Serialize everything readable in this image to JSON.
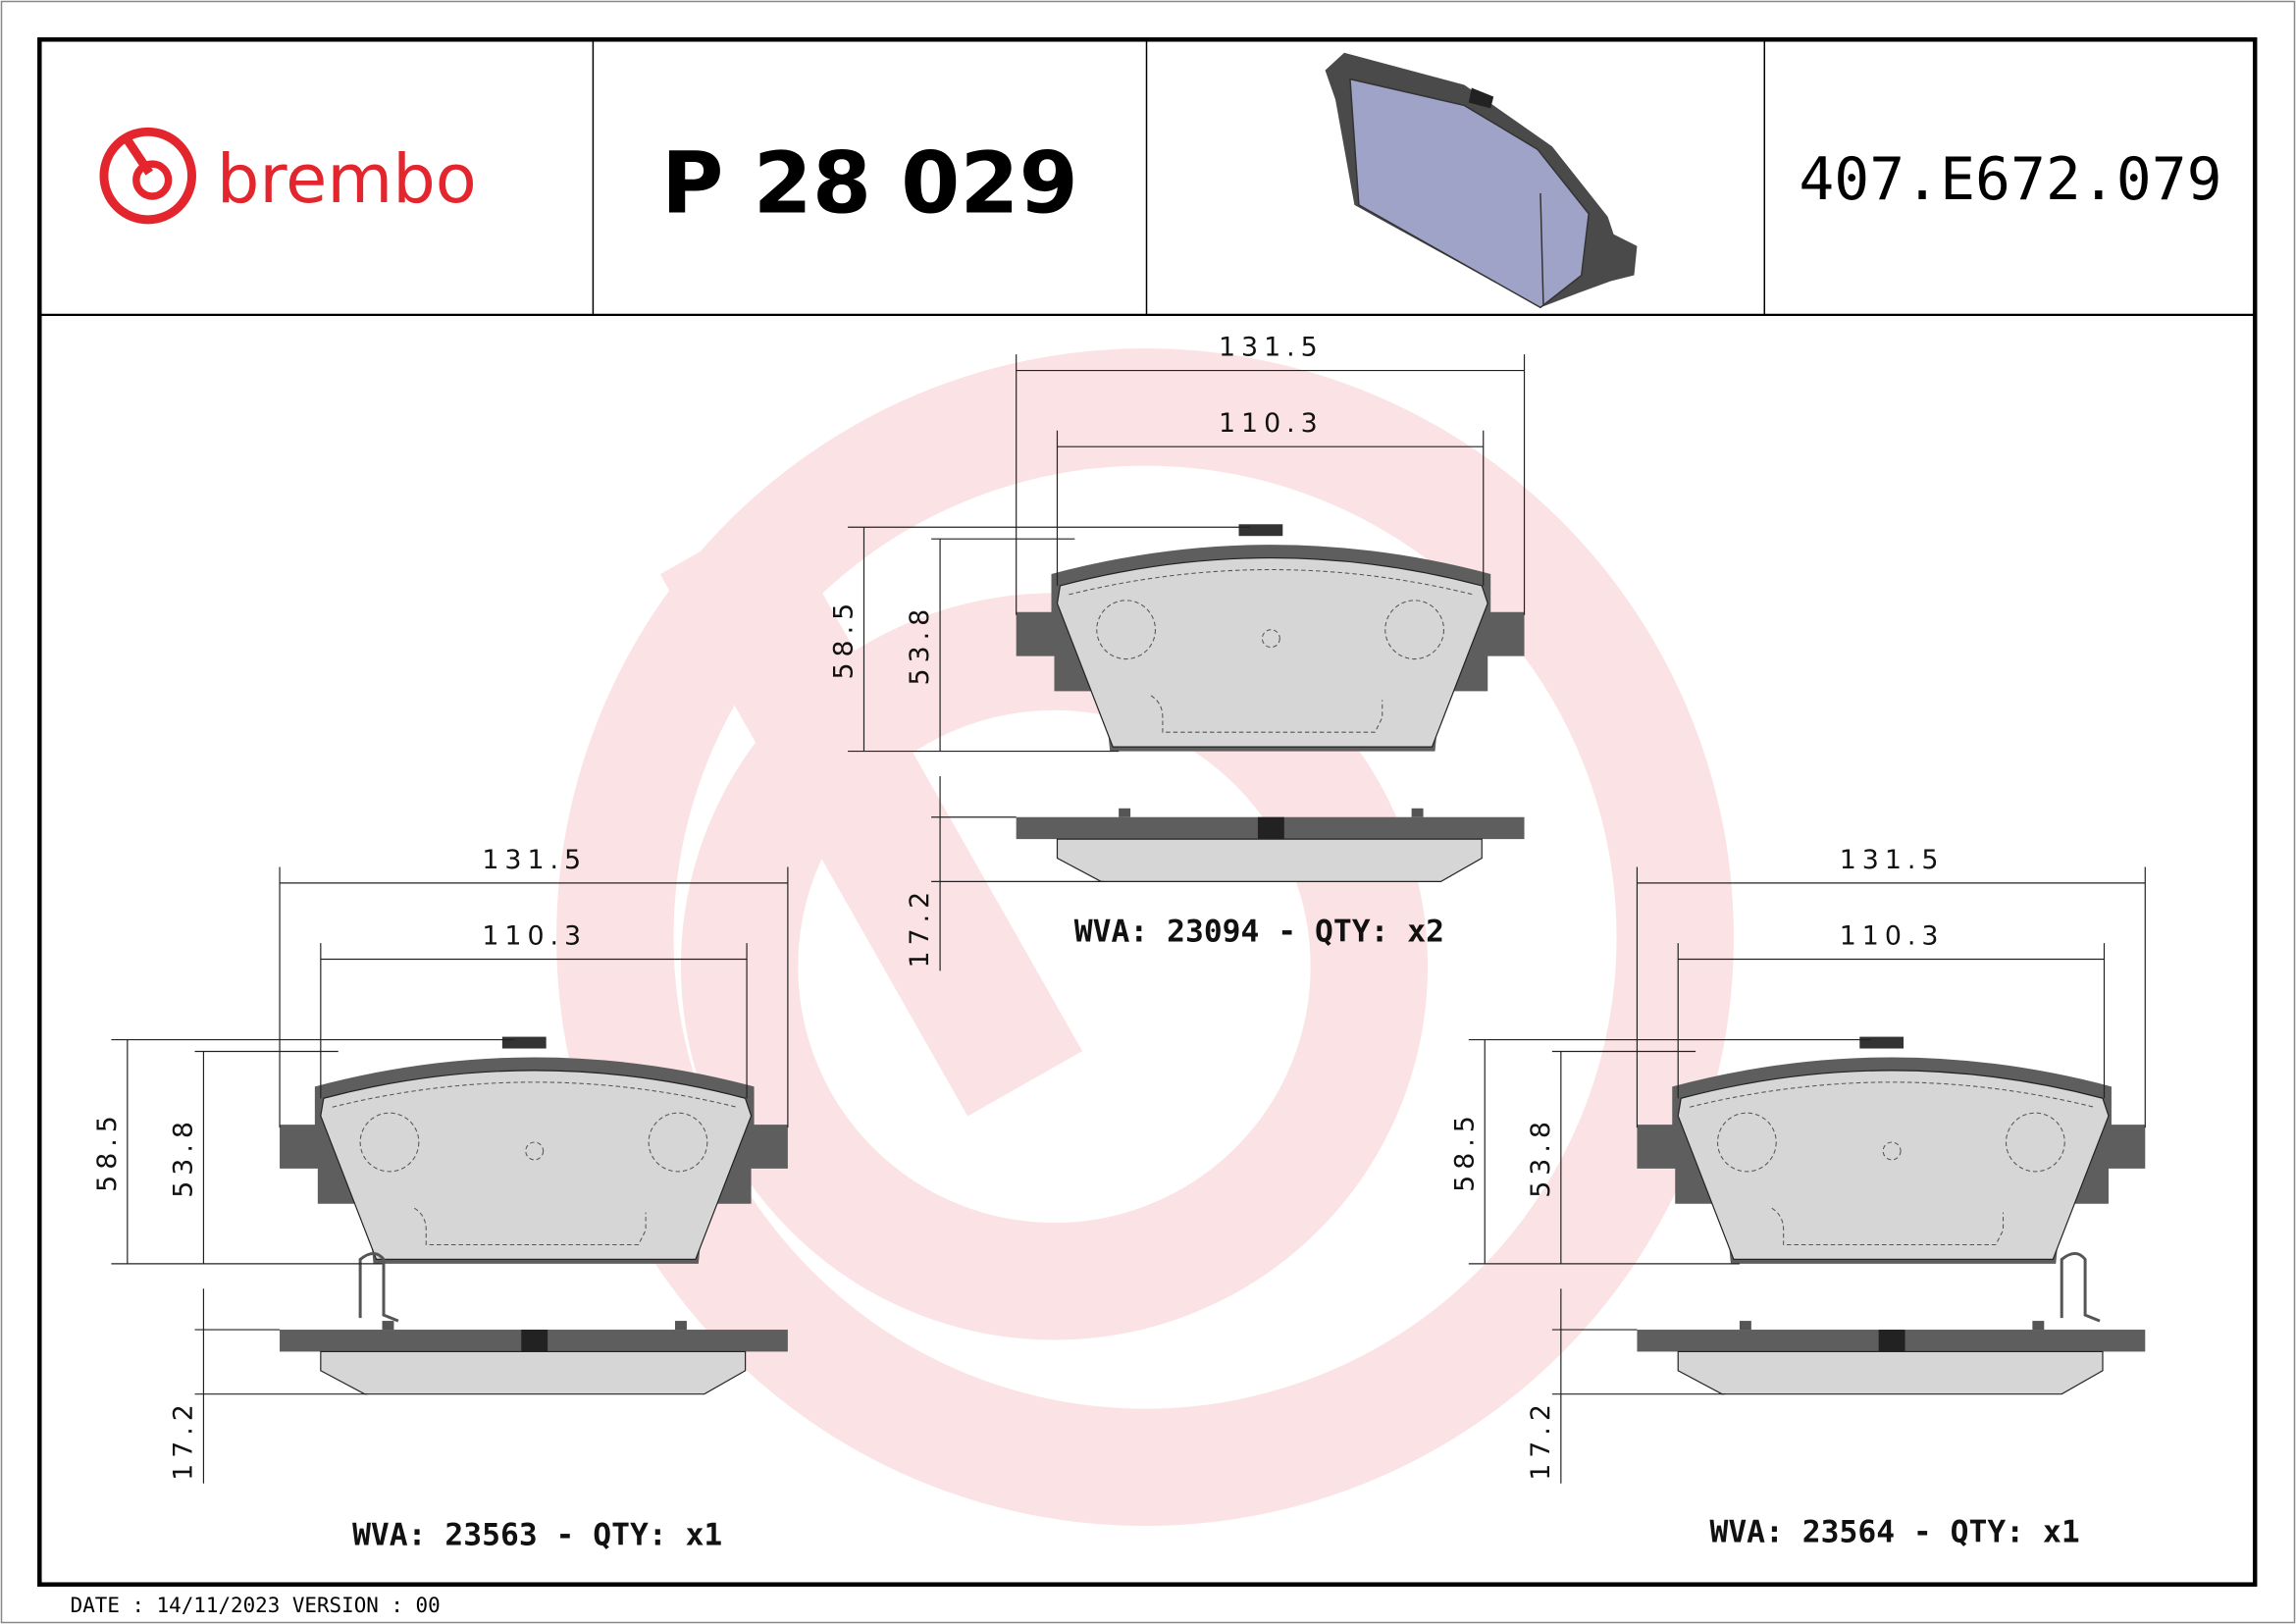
{
  "header": {
    "brand": "brembo",
    "part_number": "P 28 029",
    "reference_code": "407.E672.079",
    "brand_color": "#e3262d"
  },
  "pads": [
    {
      "width_outer": "131.5",
      "width_inner": "110.3",
      "height_outer": "58.5",
      "height_inner": "53.8",
      "thickness": "17.2",
      "wva_label": "WVA: 23094 - QTY: x2"
    },
    {
      "width_outer": "131.5",
      "width_inner": "110.3",
      "height_outer": "58.5",
      "height_inner": "53.8",
      "thickness": "17.2",
      "wva_label": "WVA: 23563 - QTY: x1"
    },
    {
      "width_outer": "131.5",
      "width_inner": "110.3",
      "height_outer": "58.5",
      "height_inner": "53.8",
      "thickness": "17.2",
      "wva_label": "WVA: 23564 - QTY: x1"
    }
  ],
  "footer": {
    "date_version": "DATE : 14/11/2023 VERSION : 00"
  },
  "colors": {
    "watermark": "#fbe2e4",
    "backing_plate": "#5e5e5e",
    "friction": "#d6d6d6",
    "render_pad": "#a0a3c8"
  }
}
